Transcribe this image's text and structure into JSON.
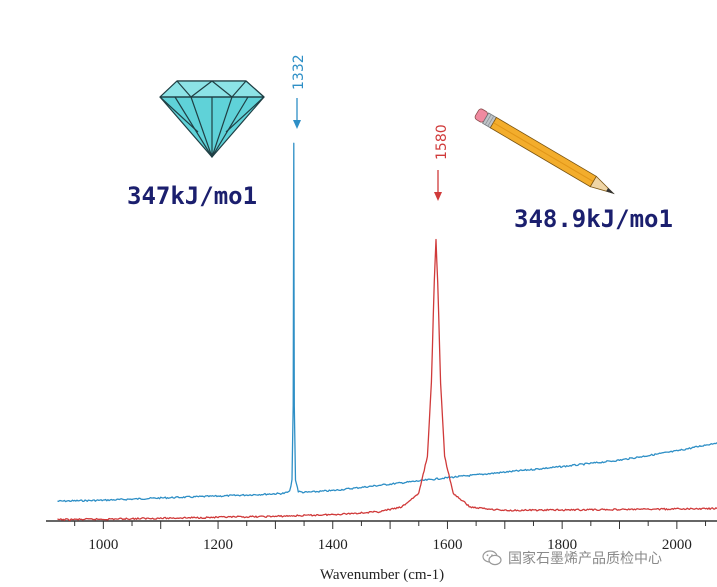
{
  "chart_data": {
    "type": "line",
    "xlabel": "Wavenumber (cm-1)",
    "ylabel": "",
    "title": "",
    "xlim": [
      900,
      2070
    ],
    "x_ticks": [
      1000,
      1200,
      1400,
      1600,
      1800,
      2000
    ],
    "grid": false,
    "legend": "none",
    "series": [
      {
        "color": "#2e8fc6",
        "peak_label": "1332",
        "points": [
          [
            920,
            0.043
          ],
          [
            1000,
            0.045
          ],
          [
            1100,
            0.05
          ],
          [
            1200,
            0.054
          ],
          [
            1280,
            0.058
          ],
          [
            1315,
            0.06
          ],
          [
            1325,
            0.064
          ],
          [
            1329,
            0.09
          ],
          [
            1331,
            0.25
          ],
          [
            1332,
            0.82
          ],
          [
            1333,
            0.25
          ],
          [
            1335,
            0.09
          ],
          [
            1340,
            0.064
          ],
          [
            1350,
            0.062
          ],
          [
            1400,
            0.066
          ],
          [
            1500,
            0.08
          ],
          [
            1600,
            0.094
          ],
          [
            1700,
            0.106
          ],
          [
            1800,
            0.118
          ],
          [
            1900,
            0.132
          ],
          [
            2000,
            0.152
          ],
          [
            2070,
            0.17
          ]
        ]
      },
      {
        "color": "#d03a3a",
        "peak_label": "1580",
        "points": [
          [
            920,
            0.003
          ],
          [
            1000,
            0.004
          ],
          [
            1100,
            0.006
          ],
          [
            1200,
            0.008
          ],
          [
            1300,
            0.01
          ],
          [
            1400,
            0.014
          ],
          [
            1480,
            0.02
          ],
          [
            1520,
            0.03
          ],
          [
            1550,
            0.06
          ],
          [
            1565,
            0.14
          ],
          [
            1572,
            0.3
          ],
          [
            1577,
            0.52
          ],
          [
            1580,
            0.61
          ],
          [
            1583,
            0.52
          ],
          [
            1588,
            0.3
          ],
          [
            1595,
            0.14
          ],
          [
            1610,
            0.06
          ],
          [
            1640,
            0.03
          ],
          [
            1700,
            0.023
          ],
          [
            1800,
            0.024
          ],
          [
            1900,
            0.025
          ],
          [
            2000,
            0.026
          ],
          [
            2070,
            0.027
          ]
        ]
      }
    ],
    "annotations": [
      {
        "text": "347kJ/mo1",
        "series": 0
      },
      {
        "text": "348.9kJ/mo1",
        "series": 1
      }
    ]
  },
  "watermark": {
    "text": "国家石墨烯产品质检中心"
  },
  "icons": {
    "diamond": "diamond-icon",
    "pencil": "pencil-icon",
    "watermark": "wechat-icon"
  }
}
